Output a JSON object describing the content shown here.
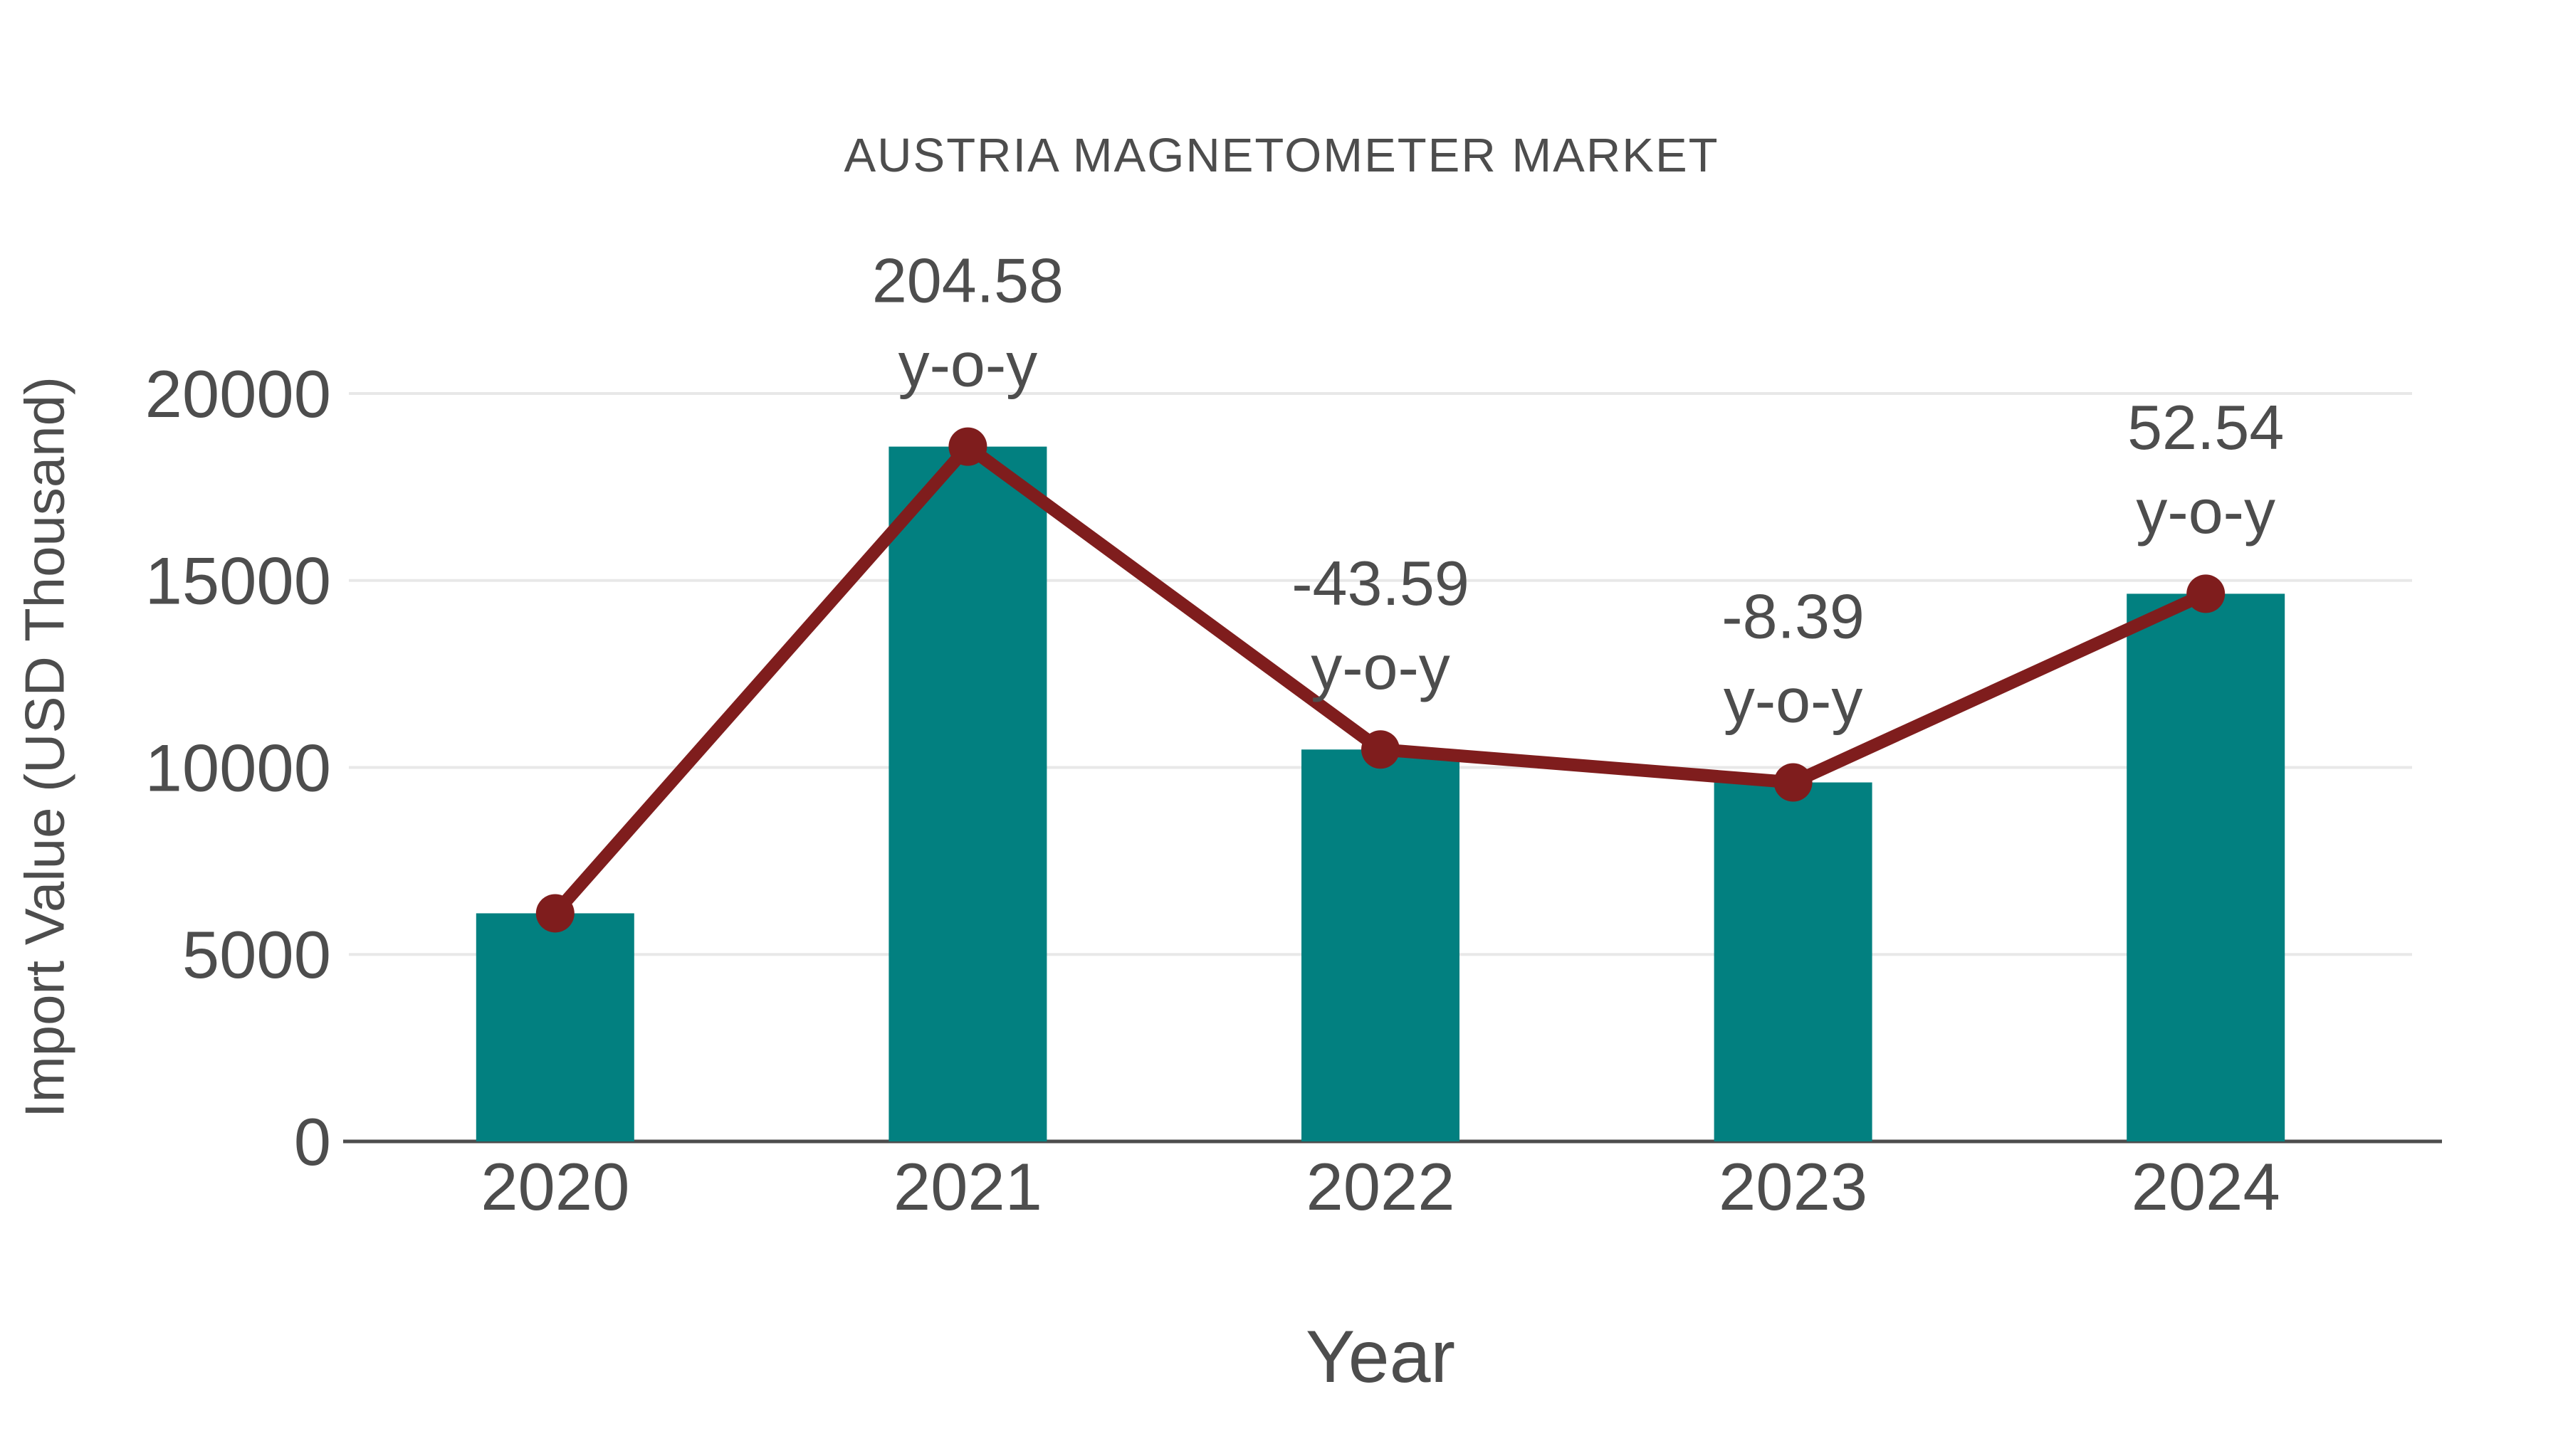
{
  "chart": {
    "title": "AUSTRIA MAGNETOMETER MARKET",
    "x_axis_label": "Year",
    "y_axis_label": "Import Value (USD Thousand)"
  },
  "chart_data": {
    "type": "bar",
    "title": "AUSTRIA MAGNETOMETER MARKET",
    "xlabel": "Year",
    "ylabel": "Import Value (USD Thousand)",
    "categories": [
      "2020",
      "2021",
      "2022",
      "2023",
      "2024"
    ],
    "series": [
      {
        "name": "Import Value (USD Thousand)",
        "type": "bar-with-line-markers",
        "values": [
          6100,
          18580,
          10480,
          9600,
          14645
        ]
      }
    ],
    "yoy_percent": [
      null,
      204.58,
      -43.59,
      -8.39,
      52.54
    ],
    "annotations": [
      null,
      {
        "line1": "204.58",
        "line2": "y-o-y"
      },
      {
        "line1": "-43.59",
        "line2": "y-o-y"
      },
      {
        "line1": "-8.39",
        "line2": "y-o-y"
      },
      {
        "line1": "52.54",
        "line2": "y-o-y"
      }
    ],
    "y_ticks": [
      0,
      5000,
      10000,
      15000,
      20000
    ],
    "ylim": [
      0,
      20000
    ],
    "grid": true,
    "legend": false,
    "colors": {
      "bar": "#028080",
      "line": "#7f1d1d",
      "marker": "#7f1d1d",
      "text": "#4d4d4d",
      "grid": "#e8e8e8",
      "axis": "#4d4d4d",
      "background": "#ffffff"
    }
  }
}
